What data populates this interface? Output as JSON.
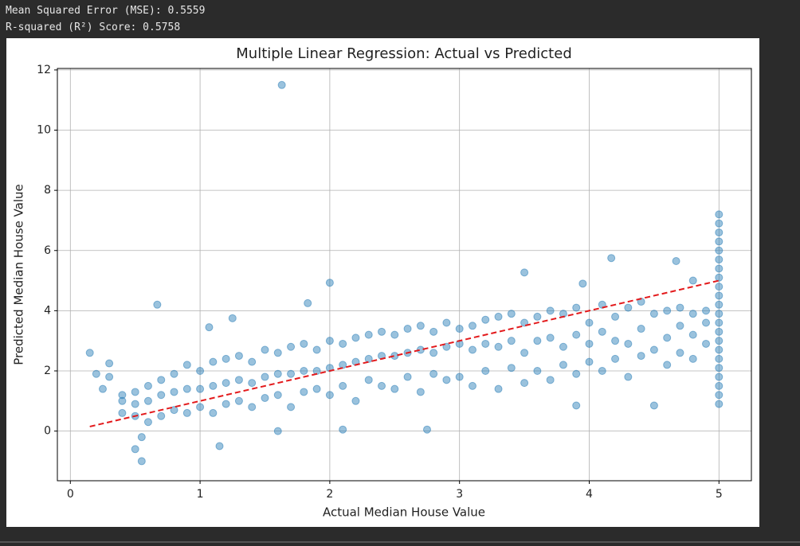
{
  "output": [
    "Mean Squared Error (MSE): 0.5559",
    "R-squared (R²) Score: 0.5758"
  ],
  "chart_data": {
    "type": "scatter",
    "title": "Multiple Linear Regression: Actual vs Predicted",
    "x_label": "Actual Median House Value",
    "y_label": "Predicted Median House Value",
    "xlim": [
      -0.1,
      5.25
    ],
    "ylim": [
      -1.65,
      12.05
    ],
    "xticks": [
      0,
      1,
      2,
      3,
      4,
      5
    ],
    "yticks": [
      0,
      2,
      4,
      6,
      8,
      10,
      12
    ],
    "grid": true,
    "series": [
      {
        "color": "#1f77b4",
        "x": [
          0.4,
          0.4,
          0.4,
          0.5,
          0.5,
          0.5,
          0.6,
          0.6,
          0.6,
          0.7,
          0.7,
          0.7,
          0.8,
          0.8,
          0.8,
          0.9,
          0.9,
          0.9,
          1,
          1,
          1,
          1.1,
          1.1,
          1.1,
          1.2,
          1.2,
          1.2,
          1.3,
          1.3,
          1.3,
          1.4,
          1.4,
          1.4,
          1.5,
          1.5,
          1.5,
          1.6,
          1.6,
          1.6,
          1.7,
          1.7,
          1.7,
          1.8,
          1.8,
          1.8,
          1.9,
          1.9,
          1.9,
          2,
          2,
          2,
          2.1,
          2.1,
          2.1,
          2.2,
          2.2,
          2.2,
          2.3,
          2.3,
          2.3,
          2.4,
          2.4,
          2.4,
          2.5,
          2.5,
          2.5,
          2.6,
          2.6,
          2.6,
          2.7,
          2.7,
          2.7,
          2.8,
          2.8,
          2.8,
          2.9,
          2.9,
          2.9,
          3,
          3,
          3,
          3.1,
          3.1,
          3.1,
          3.2,
          3.2,
          3.2,
          3.3,
          3.3,
          3.3,
          3.4,
          3.4,
          3.4,
          3.5,
          3.5,
          3.5,
          3.6,
          3.6,
          3.6,
          3.7,
          3.7,
          3.7,
          3.8,
          3.8,
          3.8,
          3.9,
          3.9,
          3.9,
          4,
          4,
          4,
          4.1,
          4.1,
          4.1,
          4.2,
          4.2,
          4.2,
          4.3,
          4.3,
          4.3,
          4.4,
          4.4,
          4.4,
          4.5,
          4.5,
          4.5,
          4.6,
          4.6,
          4.6,
          4.7,
          4.7,
          4.7,
          4.8,
          4.8,
          4.8,
          4.9,
          4.9,
          4.9,
          5,
          5,
          5,
          5,
          5,
          5,
          5,
          5,
          5,
          5,
          5,
          5,
          5,
          5,
          5,
          5,
          5,
          5,
          5,
          5,
          5,
          5,
          1.63,
          0.67,
          2,
          3.5,
          4.17,
          4.67,
          0.55,
          0.5,
          0.15,
          0.2,
          0.25,
          0.3,
          0.3,
          1.6,
          2.1,
          2.75,
          3.9,
          1.83,
          1.25,
          0.55,
          1.15,
          4.8,
          3.95,
          1.07
        ],
        "y": [
          0.6,
          1,
          1.2,
          0.5,
          0.9,
          1.3,
          0.3,
          1,
          1.5,
          0.5,
          1.2,
          1.7,
          0.7,
          1.3,
          1.9,
          0.6,
          1.4,
          2.2,
          0.8,
          1.4,
          2,
          0.6,
          1.5,
          2.3,
          0.9,
          1.6,
          2.4,
          1,
          1.7,
          2.5,
          0.8,
          1.6,
          2.3,
          1.1,
          1.8,
          2.7,
          1.2,
          1.9,
          2.6,
          0.8,
          1.9,
          2.8,
          1.3,
          2,
          2.9,
          1.4,
          2,
          2.7,
          1.2,
          2.1,
          3,
          1.5,
          2.2,
          2.9,
          1,
          2.3,
          3.1,
          1.7,
          2.4,
          3.2,
          1.5,
          2.5,
          3.3,
          1.4,
          2.5,
          3.2,
          1.8,
          2.6,
          3.4,
          1.3,
          2.7,
          3.5,
          1.9,
          2.6,
          3.3,
          1.7,
          2.8,
          3.6,
          1.8,
          2.9,
          3.4,
          1.5,
          2.7,
          3.5,
          2,
          2.9,
          3.7,
          1.4,
          2.8,
          3.8,
          2.1,
          3,
          3.9,
          1.6,
          2.6,
          3.6,
          2,
          3,
          3.8,
          1.7,
          3.1,
          4,
          2.2,
          2.8,
          3.9,
          1.9,
          3.2,
          4.1,
          2.3,
          2.9,
          3.6,
          2,
          3.3,
          4.2,
          2.4,
          3,
          3.8,
          1.8,
          2.9,
          4.1,
          2.5,
          3.4,
          4.3,
          0.85,
          2.7,
          3.9,
          2.2,
          3.1,
          4,
          2.6,
          3.5,
          4.1,
          2.4,
          3.2,
          3.9,
          2.9,
          3.6,
          4,
          0.9,
          1.2,
          1.5,
          1.8,
          2.1,
          2.4,
          2.7,
          3,
          3.3,
          3.6,
          3.9,
          4.2,
          4.5,
          4.8,
          5.1,
          5.4,
          5.7,
          6,
          6.3,
          6.6,
          6.9,
          7.2,
          11.5,
          4.2,
          4.93,
          5.27,
          5.75,
          5.65,
          -1,
          -0.6,
          2.6,
          1.9,
          1.4,
          2.25,
          1.8,
          0,
          0.05,
          0.05,
          0.85,
          4.25,
          3.75,
          -0.2,
          -0.5,
          5,
          4.9,
          3.45
        ]
      }
    ],
    "reference_line": {
      "x": [
        0.15,
        5
      ],
      "y": [
        0.15,
        5
      ],
      "color": "#e31a1c",
      "linestyle": "dashed"
    }
  }
}
